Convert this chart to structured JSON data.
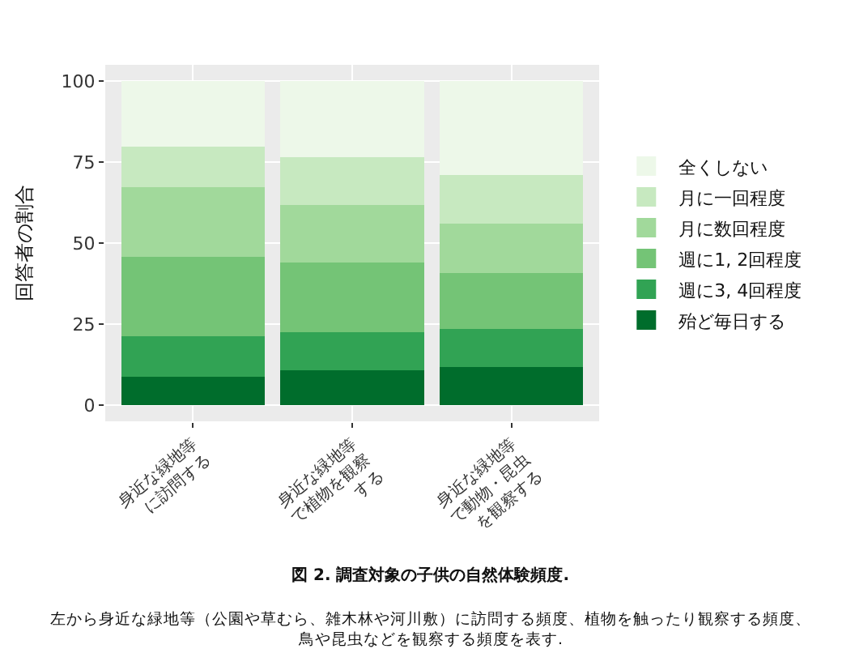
{
  "chart_data": {
    "type": "bar",
    "stacked": true,
    "ylabel": "回答者の割合",
    "categories": [
      "身近な緑地等\nに訪問する",
      "身近な緑地等\nで植物を観察\nする",
      "身近な緑地等\nで動物・昆虫\nを観察する"
    ],
    "series": [
      {
        "name": "殆ど毎日する",
        "color": "#006d2c",
        "values": [
          8.7,
          10.8,
          11.8
        ]
      },
      {
        "name": "週に3, 4回程度",
        "color": "#31a354",
        "values": [
          12.6,
          11.6,
          11.7
        ]
      },
      {
        "name": "週に1, 2回程度",
        "color": "#74c476",
        "values": [
          24.4,
          21.6,
          17.3
        ]
      },
      {
        "name": "月に数回程度",
        "color": "#a1d99b",
        "values": [
          21.5,
          17.7,
          15.2
        ]
      },
      {
        "name": "月に一回程度",
        "color": "#c7e9c0",
        "values": [
          12.6,
          14.8,
          15.1
        ]
      },
      {
        "name": "全くしない",
        "color": "#edf8e9",
        "values": [
          20.2,
          23.5,
          28.9
        ]
      }
    ],
    "ylim": [
      -5,
      105
    ],
    "yticks": [
      0,
      25,
      50,
      75,
      100
    ],
    "grid": true,
    "legend": "right",
    "annotations": [
      "図 2. 調査対象の子供の自然体験頻度.",
      "左から身近な緑地等（公園や草むら、雑木林や河川敷）に訪問する頻度、植物を触ったり観察する頻度、鳥や昆虫などを観察する頻度を表す."
    ]
  }
}
